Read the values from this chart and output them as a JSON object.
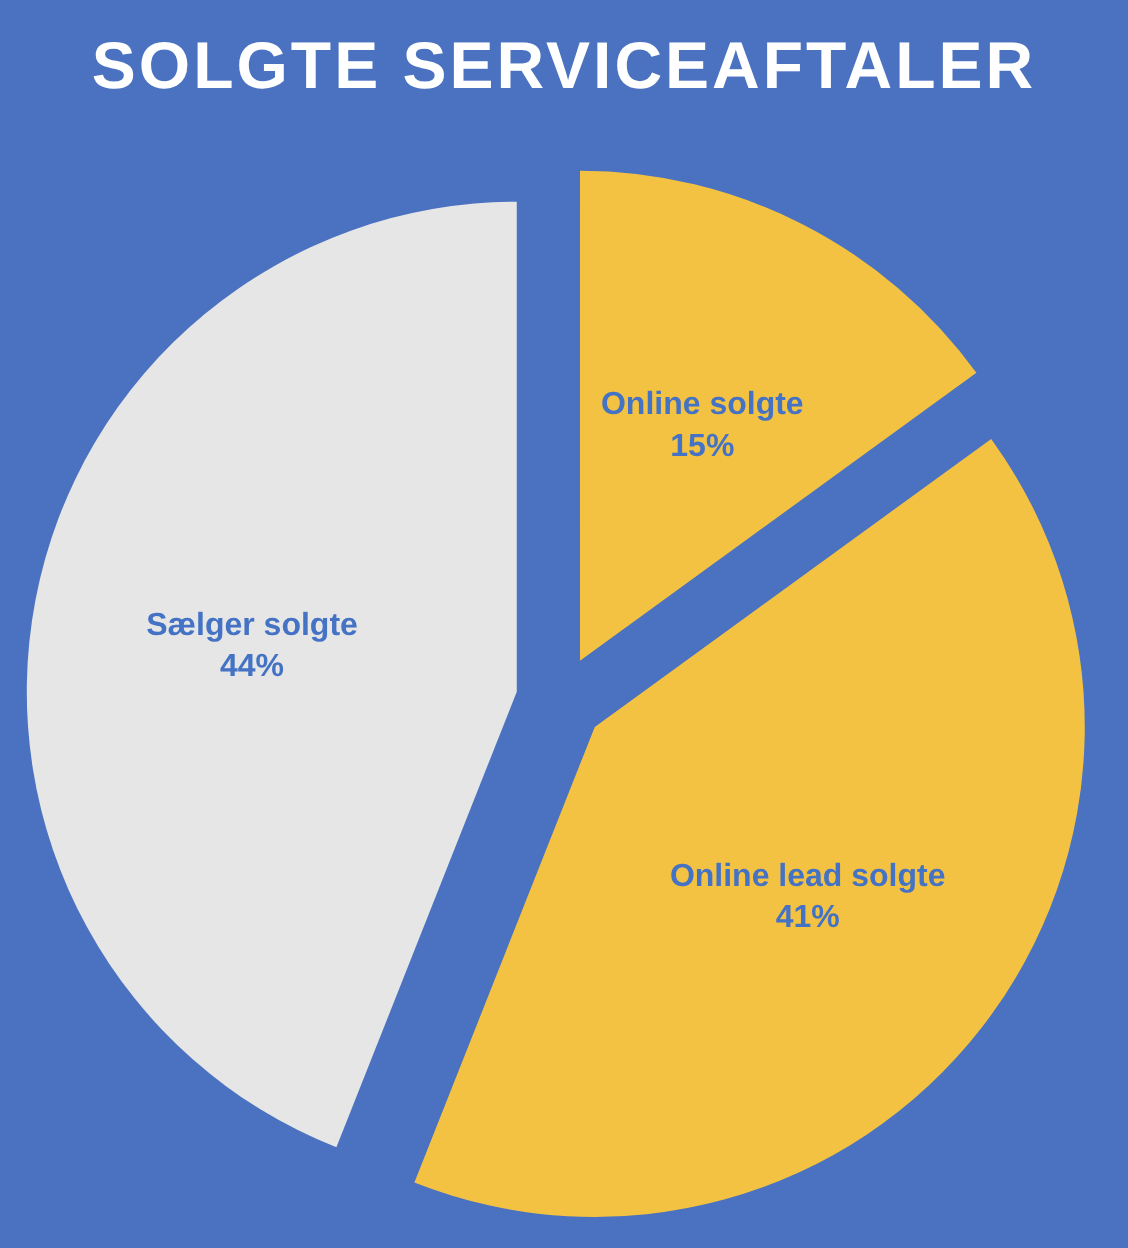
{
  "chart_data": {
    "type": "pie",
    "title": "SOLGTE SERVICEAFTALER",
    "categories": [
      "Online solgte",
      "Online lead solgte",
      "Sælger solgte"
    ],
    "values": [
      15,
      41,
      44
    ],
    "colors": [
      "#f4c242",
      "#f4c242",
      "#e6e6e6"
    ],
    "value_labels": [
      "15%",
      "41%",
      "44%"
    ]
  }
}
